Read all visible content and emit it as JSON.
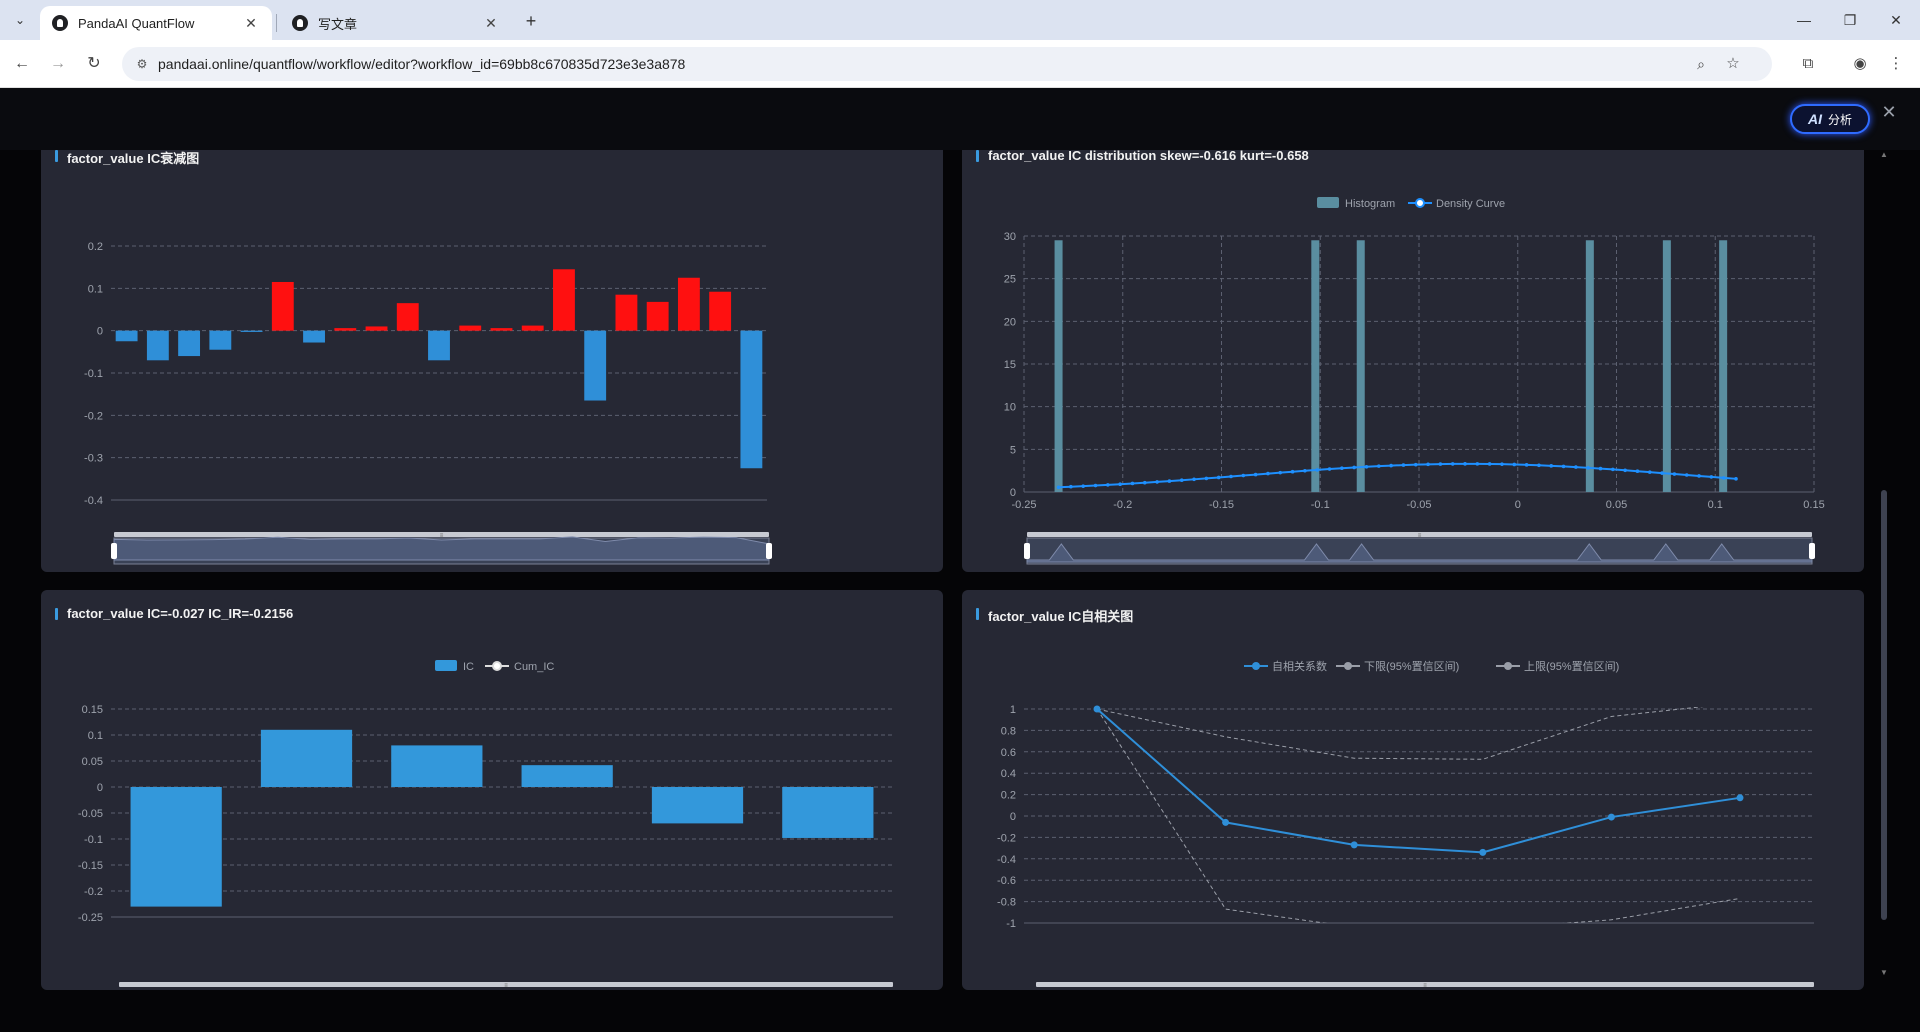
{
  "browser": {
    "tabs": [
      {
        "title": "PandaAI QuantFlow",
        "active": true
      },
      {
        "title": "写文章",
        "active": false
      }
    ],
    "url": "pandaai.online/quantflow/workflow/editor?workflow_id=69bb8c670835d723e3e3a878"
  },
  "toolbar": {
    "ai_badge": "AI",
    "ai_label": "分析"
  },
  "panels": {
    "decay": {
      "title": "factor_value IC衰减图",
      "chart_data": {
        "type": "bar",
        "ylim": [
          -0.4,
          0.2
        ],
        "yticks": [
          "0.2",
          "0.1",
          "0",
          "-0.1",
          "-0.2",
          "-0.3",
          "-0.4"
        ],
        "values": [
          -0.025,
          -0.07,
          -0.06,
          -0.045,
          -0.003,
          0.115,
          -0.028,
          0.006,
          0.01,
          0.065,
          -0.07,
          0.012,
          0.006,
          0.012,
          0.145,
          -0.165,
          0.085,
          0.068,
          0.125,
          0.092,
          -0.325
        ],
        "colors": {
          "positive": "#ff1010",
          "negative": "#2f8fd8"
        }
      }
    },
    "distribution": {
      "title": "factor_value IC distribution skew=-0.616 kurt=-0.658",
      "chart_data": {
        "type": "bar+line",
        "legend": [
          "Histogram",
          "Density Curve"
        ],
        "xlim": [
          -0.25,
          0.15
        ],
        "ylim": [
          0,
          30
        ],
        "xticks": [
          "-0.25",
          "-0.2",
          "-0.15",
          "-0.1",
          "-0.05",
          "0",
          "0.05",
          "0.1",
          "0.15"
        ],
        "yticks": [
          "30",
          "25",
          "20",
          "15",
          "10",
          "5",
          "0"
        ],
        "histogram_bins": [
          -0.2325,
          -0.1025,
          -0.0795,
          0.0365,
          0.0755,
          0.104
        ],
        "histogram_height": 29.5,
        "density_x_range": [
          -0.2325,
          0.1105
        ],
        "density_peak": 3.3,
        "density_end": 1.6,
        "colors": {
          "histogram": "#5a8ea0",
          "density": "#1e90ff"
        }
      }
    },
    "ic": {
      "title": "factor_value IC=-0.027 IC_IR=-0.2156",
      "chart_data": {
        "type": "bar",
        "legend": [
          "IC",
          "Cum_IC"
        ],
        "ylim": [
          -0.25,
          0.15
        ],
        "yticks": [
          "0.15",
          "0.1",
          "0.05",
          "0",
          "-0.05",
          "-0.1",
          "-0.15",
          "-0.2",
          "-0.25"
        ],
        "values": [
          -0.23,
          0.11,
          0.08,
          0.042,
          -0.07,
          -0.098
        ],
        "colors": {
          "bar": "#3398db"
        }
      }
    },
    "autocorr": {
      "title": "factor_value IC自相关图",
      "chart_data": {
        "type": "line",
        "legend": [
          "自相关系数",
          "下限(95%置信区间)",
          "上限(95%置信区间)"
        ],
        "ylim": [
          -1,
          1
        ],
        "yticks": [
          "1",
          "0.8",
          "0.6",
          "0.4",
          "0.2",
          "0",
          "-0.2",
          "-0.4",
          "-0.6",
          "-0.8",
          "-1"
        ],
        "series": [
          {
            "name": "自相关系数",
            "values": [
              1,
              -0.06,
              -0.27,
              -0.34,
              -0.01,
              0.17
            ]
          },
          {
            "name": "下限(95%置信区间)",
            "values": [
              1,
              -0.87,
              -1.04,
              -1.06,
              -0.97,
              -0.77
            ]
          },
          {
            "name": "上限(95%置信区间)",
            "values": [
              1,
              0.74,
              0.54,
              0.53,
              0.93,
              1.06
            ]
          }
        ],
        "colors": {
          "main": "#2f8fd8",
          "bounds": "#9a9ea8"
        }
      }
    }
  }
}
